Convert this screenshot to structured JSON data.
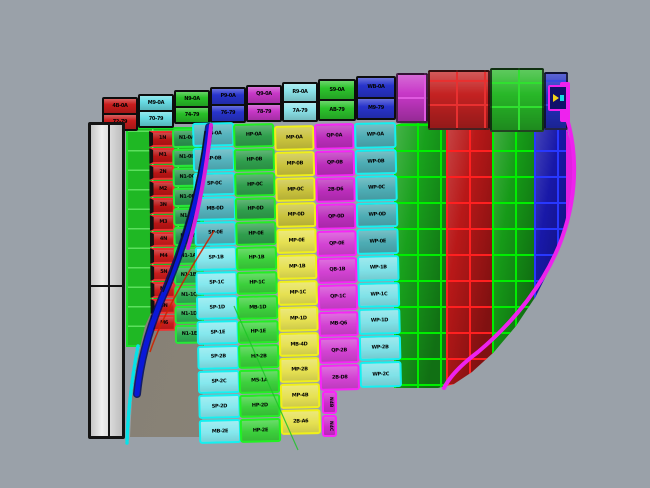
{
  "scene": {
    "background": "#9aa1a9",
    "web_gray_a": "#837d72",
    "web_gray_b": "#908a7e",
    "plate_fill_a": "#c6c6c6",
    "plate_fill_b": "#efefef",
    "plate_fill_c": "#bdbdbd",
    "backdrop_green": "#1fb824",
    "backdrop_green_line": "rgba(140,255,140,0.55)",
    "backdrop_green_border": "#19e02a",
    "curve_blue": "#0a18d8",
    "curve_blue_dark": "#000c60",
    "curve_magenta": "#d81ed8",
    "curve_cyan": "#06e2e8",
    "curve_red": "#cc2200",
    "curve_green": "#1fc428",
    "shell_edge_magenta": "#ee22ee"
  },
  "top_band": {
    "columns": [
      {
        "id": "red-1",
        "color": "#c81c1c",
        "line": "#ff3838",
        "labels": [
          "4B-0A",
          "72-79"
        ]
      },
      {
        "id": "cyan-1",
        "color": "#68dce4",
        "line": "#10e8f0",
        "labels": [
          "M9-0A",
          "70-79"
        ]
      },
      {
        "id": "green-1",
        "color": "#28c028",
        "line": "#20f020",
        "labels": [
          "N9-0A",
          "74-79"
        ]
      },
      {
        "id": "blue-1",
        "color": "#2834cc",
        "line": "#4050e8",
        "labels": [
          "P9-0A",
          "76-79"
        ]
      },
      {
        "id": "magenta-1",
        "color": "#c838c8",
        "line": "#f040f0",
        "labels": [
          "Q9-0A",
          "78-79"
        ]
      },
      {
        "id": "cyan-2",
        "color": "#8ce4ea",
        "line": "#10e8f0",
        "labels": [
          "R9-0A",
          "7A-79"
        ]
      },
      {
        "id": "green-2",
        "color": "#2cc42c",
        "line": "#20f020",
        "labels": [
          "S9-0A",
          "AB-79"
        ]
      },
      {
        "id": "blue-2",
        "color": "#2834cc",
        "line": "#4050e8",
        "labels": [
          "WB-0A",
          "M9-79"
        ]
      },
      {
        "id": "magenta-2",
        "color": "#c838c8",
        "line": "#e058e0",
        "labels": []
      },
      {
        "id": "red-2",
        "color": "#c42222",
        "line": "#e83030",
        "labels": []
      },
      {
        "id": "green-3",
        "color": "#28b828",
        "line": "#30e030",
        "labels": []
      },
      {
        "id": "blue-3",
        "color": "#2430c4",
        "line": "#3848e0",
        "labels": []
      }
    ]
  },
  "plate_columns": [
    {
      "id": "red",
      "bg_top": "#b81414",
      "bg_bottom": "#c81c1c",
      "border": "#f03030",
      "split": 6,
      "tick": true,
      "labels": [
        "1N",
        "M1",
        "2N",
        "M2",
        "3N",
        "M3",
        "4N",
        "M4",
        "5N",
        "M5",
        "6N",
        "M6"
      ]
    },
    {
      "id": "green-inner",
      "bg_top": "#2b9450",
      "bg_bottom": "#31ac54",
      "border": "#28e838",
      "split": 6,
      "labels": [
        "N1-0A",
        "N1-0B",
        "N1-0C",
        "N1-0D",
        "N1-0E",
        "N1-0F",
        "N1-1A",
        "N1-1B",
        "N1-1C",
        "N1-1D",
        "N1-1E"
      ]
    },
    {
      "id": "cyan-a",
      "bg_top": "#54b2bc",
      "bg_bottom": "#85e8ee",
      "border": "#14f0f0",
      "split": 5,
      "labels": [
        "MB-0A",
        "SP-0B",
        "SP-0C",
        "MB-0D",
        "SP-0E",
        "SP-1B",
        "SP-1C",
        "SP-1D",
        "SP-1E",
        "SP-2B",
        "SP-2C",
        "SP-2D",
        "MB-2E"
      ]
    },
    {
      "id": "green-a",
      "bg_top": "#2f9e4c",
      "bg_bottom": "#3cd03c",
      "border": "#22f022",
      "split": 5,
      "labels": [
        "HP-0A",
        "HP-0B",
        "HP-0C",
        "HP-0D",
        "HP-0E",
        "HP-1B",
        "HP-1C",
        "MB-1D",
        "HP-1E",
        "HP-2B",
        "M5-1A",
        "HP-2D",
        "HP-2E"
      ]
    },
    {
      "id": "yellow",
      "bg_top": "#c9c23c",
      "bg_bottom": "#e6e152",
      "border": "#f0f018",
      "split": 4,
      "labels": [
        "MP-0A",
        "MP-0B",
        "MP-0C",
        "MP-0D",
        "MP-0E",
        "MP-1B",
        "MP-1C",
        "MP-1D",
        "MB-4D",
        "MP-2B",
        "MP-4B",
        "2B-A6"
      ]
    },
    {
      "id": "magenta",
      "bg_top": "#bb2dbb",
      "bg_bottom": "#d342d3",
      "border": "#f826f8",
      "split": 4,
      "labels": [
        "QP-0A",
        "QP-0B",
        "2B-D6",
        "QP-0D",
        "QP-0E",
        "QB-1B",
        "QP-1C",
        "MB-Q6",
        "QP-2B",
        "2B-D8"
      ]
    },
    {
      "id": "cyan-b",
      "bg_top": "#4dacb4",
      "bg_bottom": "#80e2e8",
      "border": "#14f0f0",
      "split": 5,
      "labels": [
        "WP-0A",
        "WP-0B",
        "WP-0C",
        "WP-0D",
        "WP-0E",
        "WP-1B",
        "WP-1C",
        "WP-1D",
        "WP-2B",
        "WP-2C"
      ]
    }
  ],
  "magenta_strip": {
    "bg": "#cc2ccc",
    "border": "#f826f8",
    "labels": [
      "N4B",
      "N4C"
    ]
  },
  "shell": {
    "edge": "#ee22ee",
    "bands": [
      {
        "id": "green-outer-1",
        "base": "#18a01c",
        "line": "#00ee00"
      },
      {
        "id": "red-outer",
        "base": "#b81818",
        "line": "#ff2020"
      },
      {
        "id": "green-outer-2",
        "base": "#169a18",
        "line": "#00ee00"
      },
      {
        "id": "blue-outer",
        "base": "#1818a8",
        "line": "#2838ff"
      },
      {
        "id": "magenta-edge",
        "base": "#e020e0",
        "line": "#e020e0"
      }
    ]
  }
}
